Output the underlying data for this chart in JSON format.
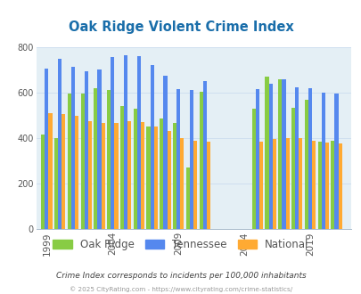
{
  "title": "Oak Ridge Violent Crime Index",
  "subtitle": "Crime Index corresponds to incidents per 100,000 inhabitants",
  "footer": "© 2025 CityRating.com - https://www.cityrating.com/crime-statistics/",
  "title_color": "#1a6eaa",
  "subtitle_color": "#444444",
  "footer_color": "#999999",
  "plot_background": "#e4eff5",
  "fig_background": "#ffffff",
  "ylim": [
    0,
    800
  ],
  "yticks": [
    0,
    200,
    400,
    600,
    800
  ],
  "xlabel_ticks": [
    1999,
    2004,
    2009,
    2014,
    2019
  ],
  "legend_labels": [
    "Oak Ridge",
    "Tennessee",
    "National"
  ],
  "legend_colors": [
    "#88cc44",
    "#5588ee",
    "#ffaa33"
  ],
  "years": [
    1999,
    2000,
    2001,
    2002,
    2003,
    2004,
    2005,
    2006,
    2007,
    2008,
    2009,
    2010,
    2011,
    2015,
    2016,
    2017,
    2018,
    2019,
    2020,
    2021
  ],
  "oak_ridge": [
    415,
    400,
    595,
    597,
    618,
    611,
    540,
    530,
    450,
    485,
    465,
    273,
    605,
    530,
    670,
    660,
    535,
    570,
    385,
    390
  ],
  "tennessee": [
    705,
    750,
    715,
    695,
    700,
    755,
    765,
    760,
    720,
    675,
    615,
    610,
    650,
    615,
    640,
    660,
    625,
    620,
    600,
    595
  ],
  "national": [
    510,
    505,
    500,
    475,
    465,
    465,
    475,
    470,
    450,
    430,
    400,
    390,
    385,
    385,
    395,
    400,
    400,
    390,
    380,
    375
  ],
  "bar_color_green": "#88cc44",
  "bar_color_blue": "#5588ee",
  "bar_color_orange": "#ffaa33",
  "bar_width": 0.28,
  "grid_color": "#ccddee",
  "tick_label_color": "#555555"
}
